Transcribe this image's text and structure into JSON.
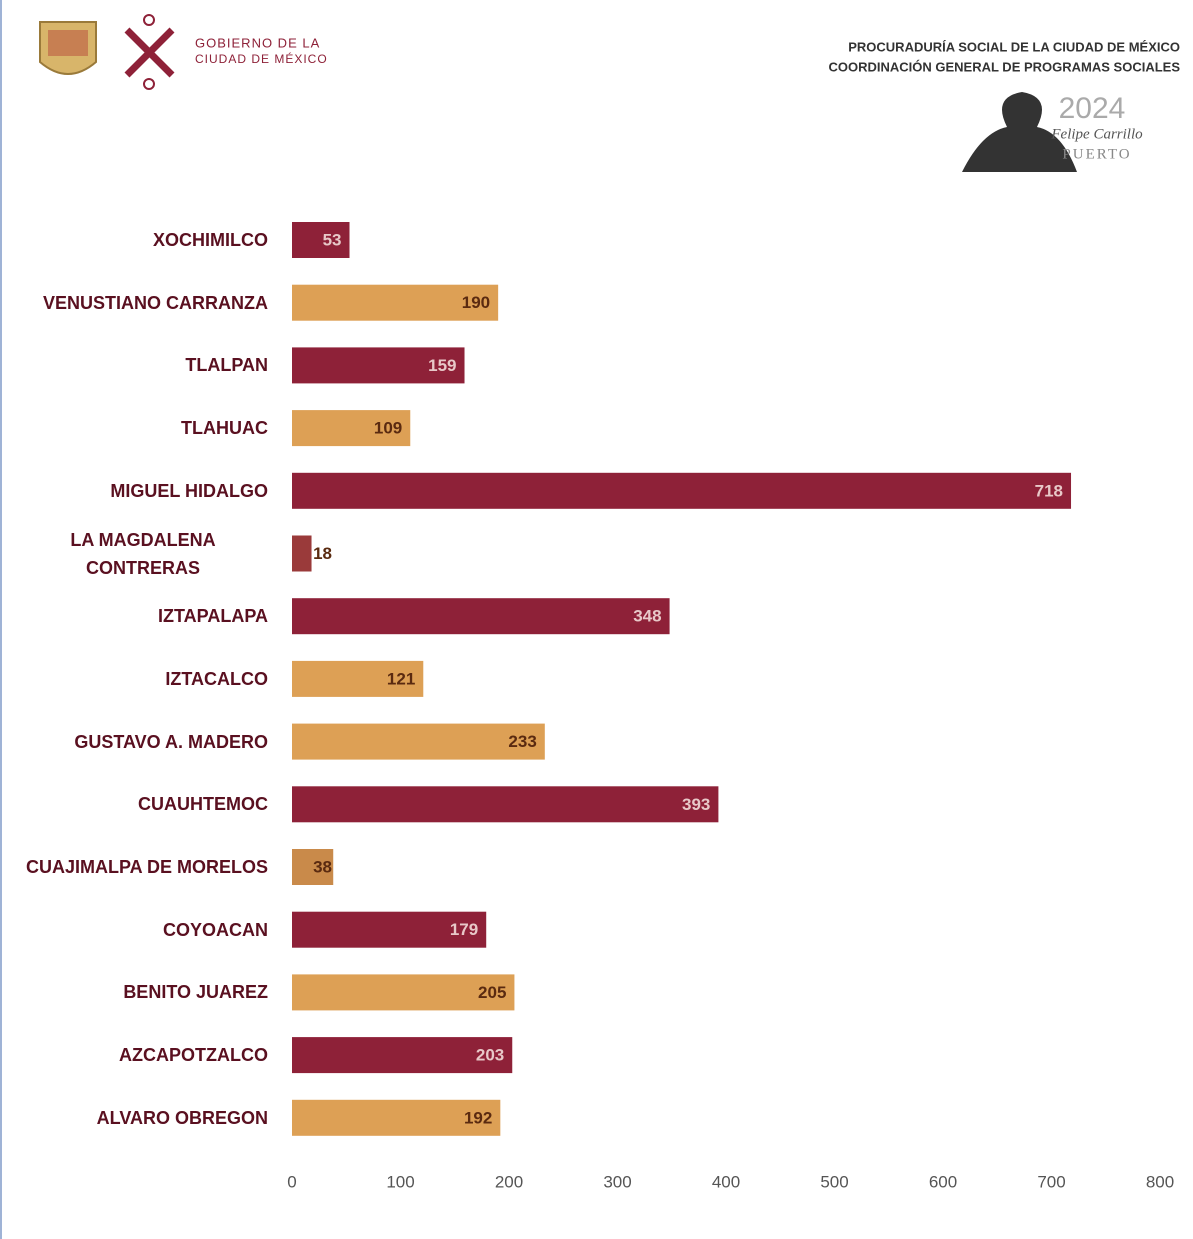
{
  "header": {
    "gov_line1": "GOBIERNO DE LA",
    "gov_line2": "CIUDAD DE MÉXICO",
    "org_line1": "PROCURADURÍA SOCIAL DE LA CIUDAD DE MÉXICO",
    "org_line2": "COORDINACIÓN GENERAL DE PROGRAMAS SOCIALES",
    "year": "2024",
    "year_name": "Felipe Carrillo",
    "year_name2": "PUERTO"
  },
  "chart_data": {
    "type": "barh",
    "categories": [
      "XOCHIMILCO",
      "VENUSTIANO CARRANZA",
      "TLALPAN",
      "TLAHUAC",
      "MIGUEL HIDALGO",
      "LA MAGDALENA CONTRERAS",
      "IZTAPALAPA",
      "IZTACALCO",
      "GUSTAVO A. MADERO",
      "CUAUHTEMOC",
      "CUAJIMALPA DE MORELOS",
      "COYOACAN",
      "BENITO JUAREZ",
      "AZCAPOTZALCO",
      "ALVARO OBREGON"
    ],
    "values": [
      53,
      190,
      159,
      109,
      718,
      18,
      348,
      121,
      233,
      393,
      38,
      179,
      205,
      203,
      192
    ],
    "colors": [
      "#8e2138",
      "#dda055",
      "#8e2138",
      "#dda055",
      "#8e2138",
      "#9a3a3a",
      "#8e2138",
      "#dda055",
      "#dda055",
      "#8e2138",
      "#c98a4a",
      "#8e2138",
      "#dda055",
      "#8e2138",
      "#dda055"
    ],
    "xlim": [
      0,
      800
    ],
    "xticks": [
      0,
      100,
      200,
      300,
      400,
      500,
      600,
      700,
      800
    ],
    "grid": false
  }
}
